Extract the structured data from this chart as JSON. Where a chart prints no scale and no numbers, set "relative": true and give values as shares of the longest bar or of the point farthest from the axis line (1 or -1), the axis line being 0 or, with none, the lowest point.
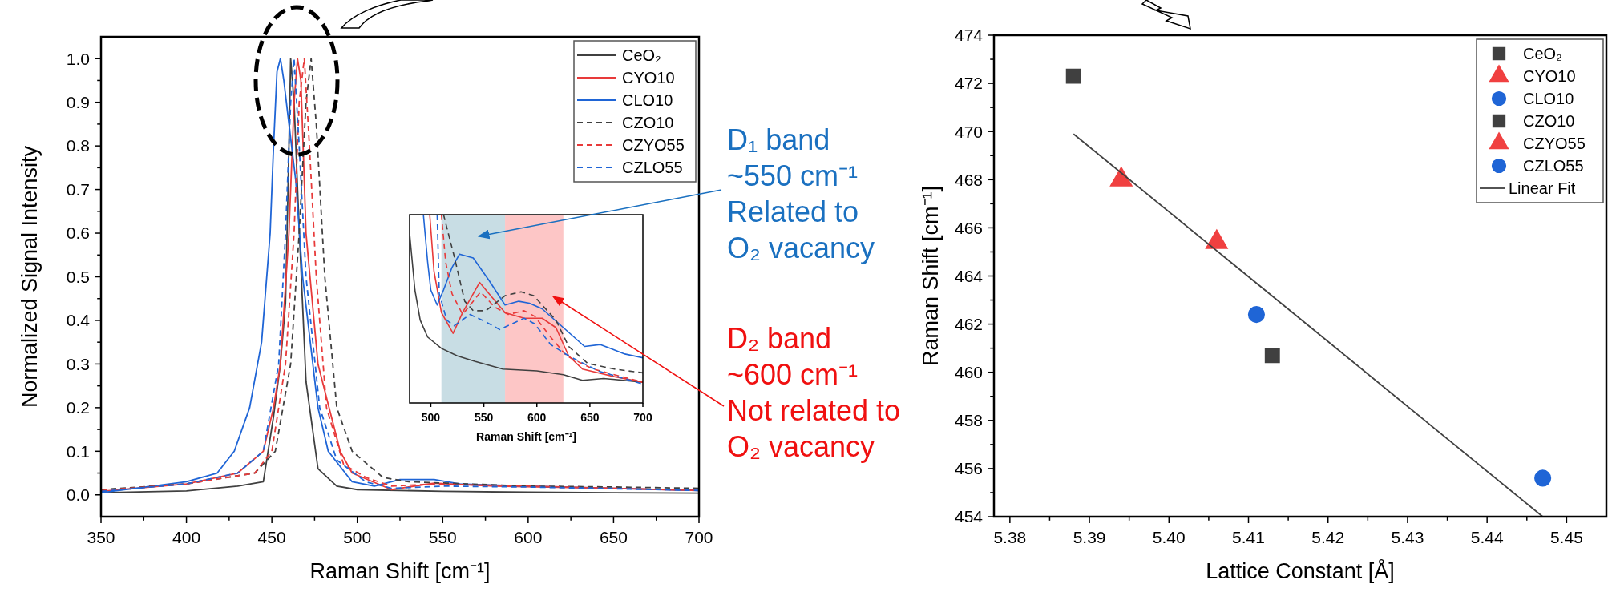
{
  "chart_data": [
    {
      "type": "line",
      "xlabel": "Raman Shift [cm⁻¹]",
      "ylabel": "Normalized Signal Intensity",
      "xlim": [
        350,
        700
      ],
      "ylim": [
        -0.05,
        1.05
      ],
      "xticks": [
        350,
        {
          "value": 375,
          "label": null
        },
        400,
        {
          "value": 425,
          "label": null
        },
        450,
        {
          "value": 475,
          "label": null
        },
        500,
        {
          "value": 525,
          "label": null
        },
        550,
        {
          "value": 575,
          "label": null
        },
        600,
        {
          "value": 625,
          "label": null
        },
        650,
        {
          "value": 675,
          "label": null
        },
        700
      ],
      "yticks": [
        {
          "value": 0,
          "label": "0.0"
        },
        {
          "value": 0.05,
          "label": null
        },
        {
          "value": 0.1,
          "label": "0.1"
        },
        {
          "value": 0.15,
          "label": null
        },
        {
          "value": 0.2,
          "label": "0.2"
        },
        {
          "value": 0.25,
          "label": null
        },
        {
          "value": 0.3,
          "label": "0.3"
        },
        {
          "value": 0.35,
          "label": null
        },
        {
          "value": 0.4,
          "label": "0.4"
        },
        {
          "value": 0.45,
          "label": null
        },
        {
          "value": 0.5,
          "label": "0.5"
        },
        {
          "value": 0.55,
          "label": null
        },
        {
          "value": 0.6,
          "label": "0.6"
        },
        {
          "value": 0.65,
          "label": null
        },
        {
          "value": 0.7,
          "label": "0.7"
        },
        {
          "value": 0.75,
          "label": null
        },
        {
          "value": 0.8,
          "label": "0.8"
        },
        {
          "value": 0.85,
          "label": null
        },
        {
          "value": 0.9,
          "label": "0.9"
        },
        {
          "value": 0.95,
          "label": null
        },
        {
          "value": 1,
          "label": "1.0"
        }
      ],
      "legend": "top right",
      "series": [
        {
          "name": "CeO₂",
          "color": "#404040",
          "line_style": "solid",
          "x": [
            350,
            400,
            430,
            445,
            451,
            455,
            458,
            460,
            461,
            463,
            466,
            470,
            477,
            488,
            500,
            550,
            600,
            650,
            700
          ],
          "values": [
            0.005,
            0.009,
            0.02,
            0.03,
            0.18,
            0.3,
            0.44,
            0.8,
            1.0,
            0.9,
            0.61,
            0.26,
            0.06,
            0.02,
            0.012,
            0.008,
            0.006,
            0.005,
            0.004
          ]
        },
        {
          "name": "CYO10",
          "color": "#e83a3a",
          "line_style": "solid",
          "x": [
            350,
            400,
            430,
            445,
            451,
            455,
            460,
            463,
            465,
            467,
            470,
            477,
            490,
            497,
            520,
            545,
            580,
            650,
            700
          ],
          "values": [
            0.008,
            0.025,
            0.05,
            0.1,
            0.2,
            0.3,
            0.6,
            0.9,
            1.0,
            0.95,
            0.6,
            0.3,
            0.1,
            0.05,
            0.012,
            0.027,
            0.02,
            0.015,
            0.01
          ]
        },
        {
          "name": "CLO10",
          "color": "#1f65d6",
          "line_style": "solid",
          "x": [
            350,
            400,
            418,
            428,
            437,
            444,
            449,
            451,
            453,
            455,
            457,
            460,
            464,
            468,
            477,
            483,
            497,
            510,
            525,
            545,
            560,
            600,
            650,
            700
          ],
          "values": [
            0.005,
            0.03,
            0.05,
            0.1,
            0.2,
            0.35,
            0.6,
            0.8,
            0.97,
            1.0,
            0.95,
            0.85,
            0.72,
            0.5,
            0.2,
            0.1,
            0.03,
            0.02,
            0.035,
            0.035,
            0.025,
            0.02,
            0.015,
            0.01
          ]
        },
        {
          "name": "CZO10",
          "color": "#404040",
          "line_style": "dashed",
          "x": [
            350,
            400,
            440,
            452,
            461,
            466,
            470,
            473,
            476,
            481,
            488,
            497,
            515,
            530,
            600,
            650,
            700
          ],
          "values": [
            0.012,
            0.025,
            0.05,
            0.1,
            0.3,
            0.6,
            0.9,
            1.0,
            0.85,
            0.5,
            0.2,
            0.1,
            0.04,
            0.03,
            0.02,
            0.018,
            0.015
          ]
        },
        {
          "name": "CZYO55",
          "color": "#e83a3a",
          "line_style": "dashed",
          "x": [
            350,
            400,
            440,
            450,
            458,
            463,
            466,
            469,
            472,
            476,
            482,
            492,
            505,
            520,
            545,
            600,
            700
          ],
          "values": [
            0.01,
            0.025,
            0.05,
            0.1,
            0.3,
            0.6,
            0.9,
            1.0,
            0.8,
            0.5,
            0.2,
            0.07,
            0.04,
            0.02,
            0.025,
            0.02,
            0.01
          ]
        },
        {
          "name": "CZLO55",
          "color": "#1f65d6",
          "line_style": "dashed",
          "x": [
            350,
            400,
            430,
            445,
            454,
            458,
            461,
            463,
            466,
            470,
            478,
            488,
            505,
            520,
            550,
            600,
            700
          ],
          "values": [
            0.008,
            0.025,
            0.05,
            0.1,
            0.3,
            0.6,
            0.9,
            1.0,
            0.8,
            0.5,
            0.2,
            0.08,
            0.03,
            0.015,
            0.02,
            0.018,
            0.01
          ]
        }
      ]
    },
    {
      "type": "line",
      "xlabel": "Raman Shift [cm⁻¹]",
      "relative": true,
      "tick_labels": "x",
      "xlim": [
        480,
        700
      ],
      "xticks": [
        500,
        550,
        600,
        650,
        700
      ],
      "bands": [
        {
          "axis": "x",
          "from": 510,
          "to": 570,
          "color": "#c8dde4",
          "label": "D₁ band\n~550 cm⁻¹\nRelated to\nO₂ vacancy"
        },
        {
          "axis": "x",
          "from": 570,
          "to": 625,
          "color": "#fdc6c6",
          "label": "D₂ band\n~600 cm⁻¹\nNot related to\nO₂ vacancy"
        }
      ],
      "series": [
        {
          "color": "#404040",
          "line_style": "solid",
          "x": [
            480,
            482,
            485,
            490,
            497,
            510,
            525,
            542,
            568,
            600,
            625,
            643,
            663,
            700
          ],
          "values": [
            0.9,
            0.78,
            0.6,
            0.44,
            0.35,
            0.29,
            0.25,
            0.22,
            0.18,
            0.17,
            0.15,
            0.12,
            0.13,
            0.11
          ]
        },
        {
          "color": "#e83a3a",
          "line_style": "solid",
          "x": [
            499,
            503,
            510,
            521,
            530,
            546,
            558,
            570,
            588,
            605,
            618,
            630,
            643,
            673,
            700
          ],
          "values": [
            1.0,
            0.7,
            0.48,
            0.37,
            0.48,
            0.64,
            0.56,
            0.48,
            0.45,
            0.45,
            0.4,
            0.25,
            0.18,
            0.14,
            0.11
          ]
        },
        {
          "color": "#1f65d6",
          "line_style": "solid",
          "x": [
            493,
            497,
            500,
            506,
            512,
            520,
            527,
            540,
            555,
            570,
            583,
            593,
            605,
            625,
            645,
            660,
            683,
            700
          ],
          "values": [
            1.0,
            0.75,
            0.6,
            0.52,
            0.6,
            0.72,
            0.79,
            0.77,
            0.65,
            0.52,
            0.54,
            0.53,
            0.5,
            0.4,
            0.3,
            0.31,
            0.26,
            0.24
          ]
        },
        {
          "color": "#404040",
          "line_style": "dashed",
          "x": [
            512,
            522,
            532,
            540,
            552,
            570,
            585,
            597,
            618,
            630,
            648,
            673,
            700
          ],
          "values": [
            1.0,
            0.78,
            0.54,
            0.49,
            0.49,
            0.57,
            0.59,
            0.57,
            0.44,
            0.3,
            0.21,
            0.18,
            0.16
          ]
        },
        {
          "color": "#e83a3a",
          "line_style": "dashed",
          "x": [
            510,
            514,
            520,
            530,
            547,
            560,
            573,
            588,
            598,
            613,
            628,
            653,
            700
          ],
          "values": [
            1.0,
            0.75,
            0.58,
            0.47,
            0.59,
            0.51,
            0.47,
            0.49,
            0.46,
            0.35,
            0.25,
            0.18,
            0.11
          ]
        },
        {
          "color": "#1f65d6",
          "line_style": "dashed",
          "x": [
            506,
            508,
            515,
            522,
            537,
            552,
            565,
            588,
            598,
            613,
            630,
            658,
            700
          ],
          "values": [
            1.0,
            0.58,
            0.44,
            0.41,
            0.47,
            0.43,
            0.39,
            0.45,
            0.42,
            0.31,
            0.25,
            0.17,
            0.1
          ]
        }
      ]
    },
    {
      "type": "scatter",
      "xlabel": "Lattice Constant [Å]",
      "ylabel": "Raman Shift [cm⁻¹]",
      "xlim": [
        5.378,
        5.455
      ],
      "ylim": [
        454,
        474
      ],
      "xticks": [
        {
          "value": 5.38,
          "label": "5.38"
        },
        {
          "value": 5.385,
          "label": null
        },
        {
          "value": 5.39,
          "label": "5.39"
        },
        {
          "value": 5.395,
          "label": null
        },
        {
          "value": 5.4,
          "label": "5.40"
        },
        {
          "value": 5.405,
          "label": null
        },
        {
          "value": 5.41,
          "label": "5.41"
        },
        {
          "value": 5.415,
          "label": null
        },
        {
          "value": 5.42,
          "label": "5.42"
        },
        {
          "value": 5.425,
          "label": null
        },
        {
          "value": 5.43,
          "label": "5.43"
        },
        {
          "value": 5.435,
          "label": null
        },
        {
          "value": 5.44,
          "label": "5.44"
        },
        {
          "value": 5.445,
          "label": null
        },
        {
          "value": 5.45,
          "label": "5.45"
        }
      ],
      "yticks": [
        454,
        {
          "value": 455,
          "label": null
        },
        456,
        {
          "value": 457,
          "label": null
        },
        458,
        {
          "value": 459,
          "label": null
        },
        460,
        {
          "value": 461,
          "label": null
        },
        462,
        {
          "value": 463,
          "label": null
        },
        464,
        {
          "value": 465,
          "label": null
        },
        466,
        {
          "value": 467,
          "label": null
        },
        468,
        {
          "value": 469,
          "label": null
        },
        470,
        {
          "value": 471,
          "label": null
        },
        472,
        {
          "value": 473,
          "label": null
        },
        474
      ],
      "legend": "top right",
      "series": [
        {
          "name": "CeO₂",
          "color": "#404040",
          "marker": "square",
          "x": [
            5.413
          ],
          "values": [
            460.7
          ]
        },
        {
          "name": "CYO10",
          "color": "#f04040",
          "marker": "triangle",
          "x": [
            5.406
          ],
          "values": [
            465.4
          ]
        },
        {
          "name": "CLO10",
          "color": "#1f65d6",
          "marker": "circle",
          "x": [
            5.447
          ],
          "values": [
            455.6
          ]
        },
        {
          "name": "CZO10",
          "color": "#404040",
          "marker": "square",
          "x": [
            5.388
          ],
          "values": [
            472.3
          ]
        },
        {
          "name": "CZYO55",
          "color": "#f04040",
          "marker": "triangle",
          "x": [
            5.394
          ],
          "values": [
            468.0
          ]
        },
        {
          "name": "CZLO55",
          "color": "#1f65d6",
          "marker": "circle",
          "x": [
            5.411
          ],
          "values": [
            462.4
          ]
        },
        {
          "name": "Linear Fit",
          "type": "line",
          "color": "#404040",
          "marker": "none",
          "line_style": "solid",
          "x": [
            5.388,
            5.447
          ],
          "values": [
            469.9,
            454.0
          ]
        }
      ]
    }
  ]
}
